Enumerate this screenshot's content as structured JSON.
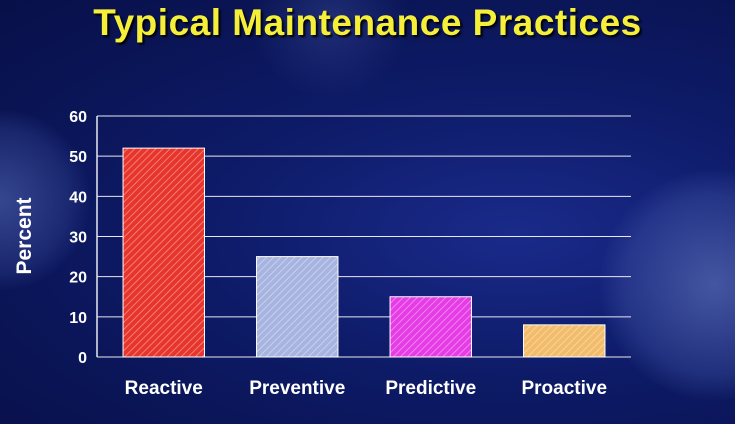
{
  "slide": {
    "title": "Typical Maintenance Practices"
  },
  "chart_data": {
    "type": "bar",
    "title": "Typical Maintenance Practices",
    "ylabel": "Percent",
    "xlabel": "",
    "categories": [
      "Reactive",
      "Preventive",
      "Predictive",
      "Proactive"
    ],
    "values": [
      52,
      25,
      15,
      8
    ],
    "ylim": [
      0,
      60
    ],
    "yticks": [
      0,
      10,
      20,
      30,
      40,
      50,
      60
    ],
    "grid": true,
    "legend": "none",
    "bar_colors": [
      "#e8352c",
      "#a8b4e0",
      "#e63ce6",
      "#f2bc6a"
    ],
    "bar_fill": "hatched"
  }
}
